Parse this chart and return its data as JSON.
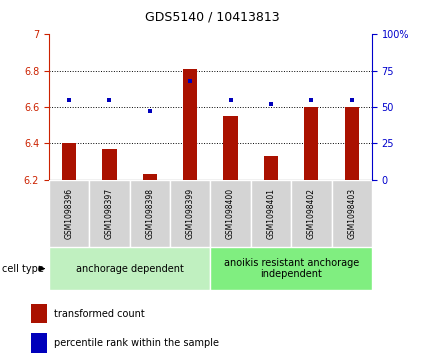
{
  "title": "GDS5140 / 10413813",
  "samples": [
    "GSM1098396",
    "GSM1098397",
    "GSM1098398",
    "GSM1098399",
    "GSM1098400",
    "GSM1098401",
    "GSM1098402",
    "GSM1098403"
  ],
  "red_values": [
    6.4,
    6.37,
    6.23,
    6.81,
    6.55,
    6.33,
    6.6,
    6.6
  ],
  "blue_values": [
    55,
    55,
    47,
    68,
    55,
    52,
    55,
    55
  ],
  "y_min": 6.2,
  "y_max": 7.0,
  "y_ticks": [
    6.2,
    6.4,
    6.6,
    6.8,
    7.0
  ],
  "y_tick_labels": [
    "6.2",
    "6.4",
    "6.6",
    "6.8",
    "7"
  ],
  "y2_ticks": [
    0,
    25,
    50,
    75,
    100
  ],
  "y2_tick_labels": [
    "0",
    "25",
    "50",
    "75",
    "100%"
  ],
  "groups": [
    {
      "label": "anchorage dependent",
      "start": 0,
      "end": 4,
      "color": "#c0f0c0"
    },
    {
      "label": "anoikis resistant anchorage\nindependent",
      "start": 4,
      "end": 8,
      "color": "#80ee80"
    }
  ],
  "bar_color": "#aa1100",
  "dot_color": "#0000bb",
  "label_color_red": "#cc2200",
  "label_color_blue": "#0000cc",
  "legend_items": [
    "transformed count",
    "percentile rank within the sample"
  ],
  "cell_type_label": "cell type",
  "bar_width": 0.35,
  "baseline": 6.2,
  "grid_lines": [
    6.4,
    6.6,
    6.8
  ],
  "sample_box_color": "#d4d4d4",
  "title_fontsize": 9,
  "tick_fontsize": 7,
  "legend_fontsize": 7,
  "sample_fontsize": 5.5,
  "group_fontsize": 7
}
